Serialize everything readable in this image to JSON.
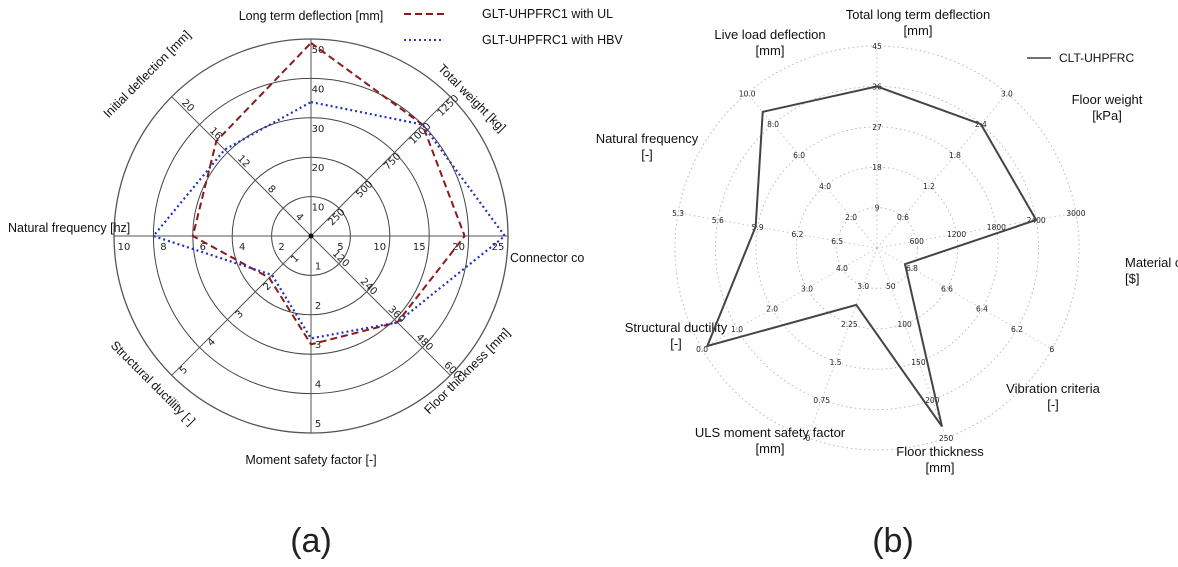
{
  "chart_data": [
    {
      "type": "radar",
      "caption": "(a)",
      "axes": [
        {
          "label": "Long term deflection [mm]",
          "ticks": [
            "10",
            "20",
            "30",
            "40",
            "50"
          ],
          "max": 50
        },
        {
          "label": "Total weight [kg]",
          "ticks": [
            "250",
            "500",
            "750",
            "1000",
            "1250"
          ],
          "max": 1250
        },
        {
          "label": "Connector co",
          "ticks": [
            "5",
            "10",
            "15",
            "20",
            "25"
          ],
          "max": 25
        },
        {
          "label": "Floor thickness [mm]",
          "ticks": [
            "120",
            "240",
            "360",
            "480",
            "600"
          ],
          "max": 600
        },
        {
          "label": "Moment safety factor [-]",
          "ticks": [
            "1",
            "2",
            "3",
            "4",
            "5"
          ],
          "max": 5
        },
        {
          "label": "Structural ductility [-]",
          "ticks": [
            "1",
            "2",
            "3",
            "4",
            "5"
          ],
          "max": 5
        },
        {
          "label": "Natural frequency [hz]",
          "ticks": [
            "2",
            "4",
            "6",
            "8",
            "10"
          ],
          "max": 10
        },
        {
          "label": "Initial deflection [mm]",
          "ticks": [
            "4",
            "8",
            "12",
            "16",
            "20"
          ],
          "max": 20
        }
      ],
      "series": [
        {
          "name": "GLT-UHPFRC1 with UL",
          "color": "#8b1a1a",
          "style": "dashed",
          "values": [
            49,
            1000,
            19.5,
            372,
            2.75,
            1.5,
            6.0,
            13.6
          ]
        },
        {
          "name": "GLT-UHPFRC1 with HBV",
          "color": "#2233bb",
          "style": "dotted",
          "values": [
            34,
            1000,
            24.6,
            372,
            2.6,
            1.4,
            8.0,
            12.4
          ]
        }
      ],
      "legend_position": "top-right",
      "grid": true
    },
    {
      "type": "radar",
      "caption": "(b)",
      "axes": [
        {
          "label": [
            "Total long term deflection",
            "[mm]"
          ],
          "ticks": [
            "9",
            "18",
            "27",
            "36",
            "45"
          ],
          "max": 45
        },
        {
          "label": [
            "Floor weight",
            "[kPa]"
          ],
          "ticks": [
            "0.6",
            "1.2",
            "1.8",
            "2.4",
            "3.0"
          ],
          "max": 3.0
        },
        {
          "label": [
            "Material cos",
            "[$]"
          ],
          "ticks": [
            "600",
            "1200",
            "1800",
            "2400",
            "3000"
          ],
          "max": 3000
        },
        {
          "label": [
            "Vibration criteria",
            "[-]"
          ],
          "ticks": [
            "6.8",
            "6.6",
            "6.4",
            "6.2",
            "6"
          ],
          "max": 5
        },
        {
          "label": [
            "Floor thickness",
            "[mm]"
          ],
          "ticks": [
            "50",
            "100",
            "150",
            "200",
            "250"
          ],
          "max": 250
        },
        {
          "label": [
            "ULS moment safety factor",
            "[mm]"
          ],
          "ticks": [
            "3.0",
            "2.25",
            "1.5",
            "0.75",
            "0"
          ],
          "max": 5
        },
        {
          "label": [
            "Structural ductility",
            "[-]"
          ],
          "ticks": [
            "4.0",
            "3.0",
            "2.0",
            "1.0",
            "0.0"
          ],
          "max": 5
        },
        {
          "label": [
            "Natural frequency",
            "[-]"
          ],
          "ticks": [
            "6.5",
            "6.2",
            "5.9",
            "5.6",
            "5.3"
          ],
          "max": 5
        },
        {
          "label": [
            "Live load deflection",
            "[mm]"
          ],
          "ticks": [
            "2.0",
            "4.0",
            "6.0",
            "8.0",
            "10.0"
          ],
          "max": 10
        }
      ],
      "series": [
        {
          "name": "CLT-UHPFRC",
          "color": "#444444",
          "style": "solid",
          "values": [
            36,
            2.4,
            2400,
            0.8,
            235,
            1.5,
            4.85,
            3.05,
            8.8
          ]
        }
      ],
      "legend_position": "top-right",
      "grid": true
    }
  ]
}
